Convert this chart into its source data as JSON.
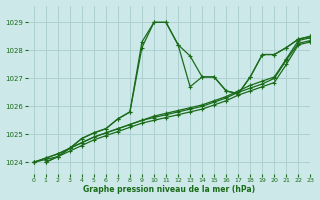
{
  "title": "Graphe pression niveau de la mer (hPa)",
  "bg_color": "#cce8e8",
  "grid_color": "#aacccc",
  "line_color": "#1a6b1a",
  "xlim": [
    -0.5,
    23
  ],
  "ylim": [
    1023.6,
    1029.6
  ],
  "yticks": [
    1024,
    1025,
    1026,
    1027,
    1028,
    1029
  ],
  "xticks": [
    0,
    1,
    2,
    3,
    4,
    5,
    6,
    7,
    8,
    9,
    10,
    11,
    12,
    13,
    14,
    15,
    16,
    17,
    18,
    19,
    20,
    21,
    22,
    23
  ],
  "series": {
    "peak1": [
      1024.0,
      1024.2,
      1024.5,
      1024.85,
      1025.05,
      1025.2,
      1025.55,
      1025.8,
      1028.3,
      1029.0,
      1029.0,
      1028.2,
      1027.8,
      1027.05,
      1027.05,
      1026.55,
      1026.45,
      1027.05,
      1027.85,
      1027.85,
      1028.1,
      1028.4,
      1028.5
    ],
    "peak2": [
      1024.0,
      1024.2,
      1024.5,
      1024.85,
      1025.05,
      1025.2,
      1025.55,
      1025.8,
      1028.1,
      1029.0,
      1029.0,
      1028.2,
      1026.7,
      1027.05,
      1027.05,
      1026.55,
      1026.45,
      1027.05,
      1027.85,
      1027.85,
      1028.1,
      1028.4,
      1028.5
    ],
    "linear1": [
      1024.0,
      1024.15,
      1024.3,
      1024.5,
      1024.7,
      1024.9,
      1025.05,
      1025.2,
      1025.35,
      1025.5,
      1025.65,
      1025.75,
      1025.85,
      1025.95,
      1026.05,
      1026.2,
      1026.35,
      1026.55,
      1026.75,
      1026.9,
      1027.05,
      1027.7,
      1028.35,
      1028.45
    ],
    "linear2": [
      1024.0,
      1024.15,
      1024.3,
      1024.5,
      1024.7,
      1024.9,
      1025.05,
      1025.2,
      1025.35,
      1025.5,
      1025.6,
      1025.7,
      1025.8,
      1025.9,
      1026.0,
      1026.15,
      1026.3,
      1026.5,
      1026.65,
      1026.8,
      1027.0,
      1027.65,
      1028.25,
      1028.35
    ],
    "linear3": [
      1024.0,
      1024.1,
      1024.2,
      1024.4,
      1024.6,
      1024.8,
      1024.95,
      1025.1,
      1025.25,
      1025.4,
      1025.5,
      1025.6,
      1025.7,
      1025.8,
      1025.9,
      1026.05,
      1026.2,
      1026.4,
      1026.55,
      1026.7,
      1026.85,
      1027.5,
      1028.2,
      1028.3
    ]
  },
  "peak_x_start": 2
}
